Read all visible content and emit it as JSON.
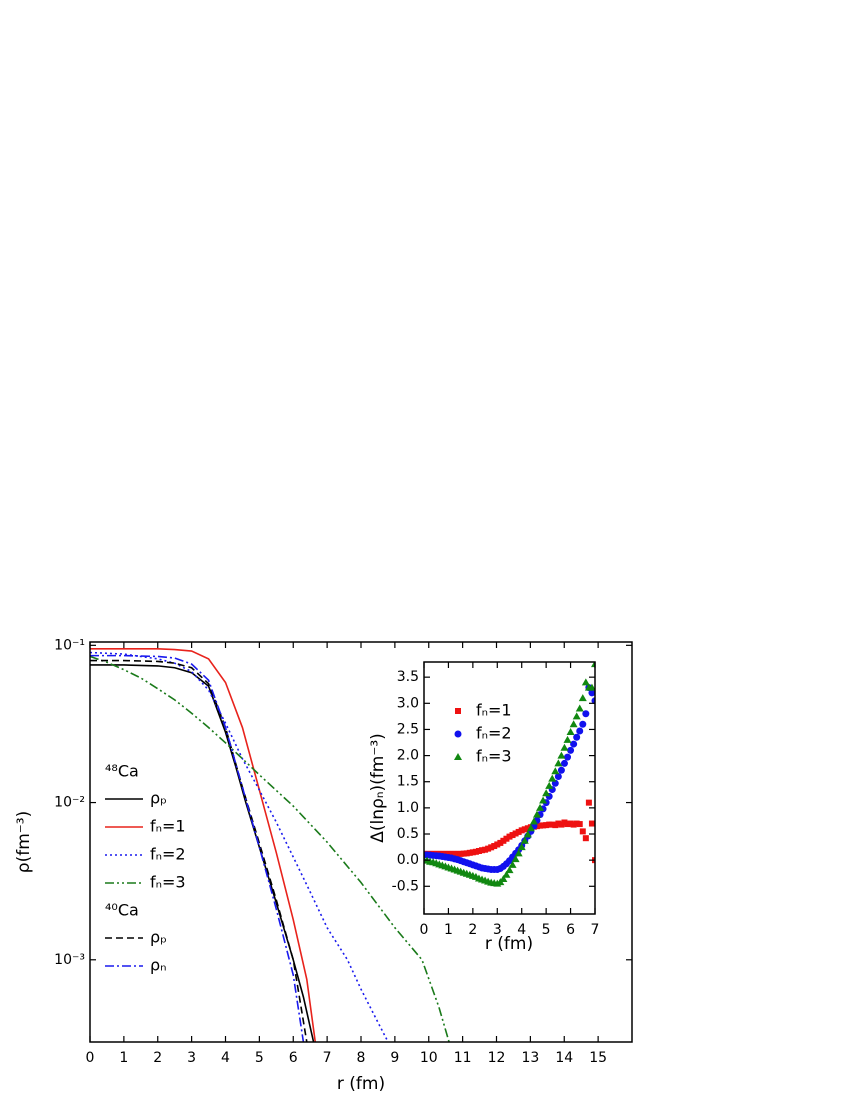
{
  "chart_data": [
    {
      "type": "line",
      "xlabel": "r (fm)",
      "ylabel": "ρ(fm⁻³)",
      "ylog": true,
      "xlim": [
        0,
        16
      ],
      "ylim": [
        0.0003,
        0.105
      ],
      "xticks": [
        0,
        1,
        2,
        3,
        4,
        5,
        6,
        7,
        8,
        9,
        10,
        11,
        12,
        13,
        14,
        15
      ],
      "yticks": [
        {
          "value": 0.1,
          "label": "10⁻¹"
        },
        {
          "value": 0.01,
          "label": "10⁻²"
        },
        {
          "value": 0.001,
          "label": "10⁻³"
        }
      ],
      "groups": [
        {
          "title": "⁴⁸Ca",
          "series": [
            {
              "name": "ρₚ",
              "color": "#000000",
              "dash": "solid",
              "x": [
                0,
                1,
                2,
                2.5,
                3,
                3.5,
                4,
                4.3,
                4.6,
                5,
                5.5,
                6,
                6.3,
                6.6
              ],
              "values": [
                0.075,
                0.075,
                0.074,
                0.072,
                0.067,
                0.055,
                0.028,
                0.017,
                0.01,
                0.0052,
                0.0023,
                0.001,
                0.00058,
                0.0003
              ]
            },
            {
              "name": "fₙ=1",
              "color": "#e8231c",
              "dash": "solid",
              "x": [
                0,
                1,
                2,
                2.5,
                3,
                3.5,
                4,
                4.5,
                5.1,
                5.5,
                6,
                6.4,
                6.65
              ],
              "values": [
                0.095,
                0.095,
                0.095,
                0.094,
                0.092,
                0.082,
                0.058,
                0.03,
                0.01,
                0.0048,
                0.0018,
                0.00075,
                0.0003
              ]
            },
            {
              "name": "fₙ=2",
              "color": "#1a1aee",
              "dash": "dotted",
              "x": [
                0,
                1,
                2,
                2.5,
                3,
                3.5,
                4,
                4.5,
                5,
                5.5,
                6,
                6.5,
                7,
                7.6,
                8,
                8.5,
                8.8
              ],
              "values": [
                0.09,
                0.088,
                0.082,
                0.077,
                0.068,
                0.052,
                0.032,
                0.019,
                0.012,
                0.0075,
                0.0045,
                0.0027,
                0.0016,
                0.001,
                0.00065,
                0.0004,
                0.0003
              ]
            },
            {
              "name": "fₙ=3",
              "color": "#1a7a1a",
              "dash": "dash-dot-dot",
              "x": [
                0,
                0.5,
                1,
                1.5,
                2,
                2.5,
                3,
                3.5,
                4,
                4.5,
                5,
                6,
                7,
                8,
                9,
                9.8,
                10.3,
                10.6
              ],
              "values": [
                0.085,
                0.078,
                0.07,
                0.062,
                0.053,
                0.045,
                0.037,
                0.03,
                0.024,
                0.019,
                0.015,
                0.0095,
                0.0056,
                0.0031,
                0.0016,
                0.001,
                0.0005,
                0.0003
              ]
            }
          ]
        },
        {
          "title": "⁴⁰Ca",
          "series": [
            {
              "name": "ρₚ",
              "color": "#000000",
              "dash": "dashed",
              "x": [
                0,
                1,
                2,
                2.5,
                3,
                3.5,
                4,
                4.5,
                5,
                5.5,
                6,
                6.4
              ],
              "values": [
                0.08,
                0.08,
                0.079,
                0.077,
                0.072,
                0.057,
                0.03,
                0.0125,
                0.0055,
                0.0024,
                0.001,
                0.0003
              ]
            },
            {
              "name": "ρₙ",
              "color": "#1a1aee",
              "dash": "dash-dot",
              "x": [
                0,
                1,
                2,
                2.5,
                3,
                3.5,
                4,
                4.5,
                5,
                5.5,
                6,
                6.3
              ],
              "values": [
                0.086,
                0.086,
                0.085,
                0.083,
                0.076,
                0.06,
                0.03,
                0.0125,
                0.0052,
                0.0021,
                0.0008,
                0.0003
              ]
            }
          ]
        }
      ]
    },
    {
      "type": "scatter",
      "xlabel": "r (fm)",
      "ylabel": "Δ(lnρₙ)(fm⁻³)",
      "xlim": [
        0,
        7
      ],
      "ylim": [
        -1.03,
        3.79
      ],
      "xticks": [
        0,
        1,
        2,
        3,
        4,
        5,
        6,
        7
      ],
      "yticks": [
        -0.5,
        {
          "value": 0,
          "label": "0.0"
        },
        0.5,
        {
          "value": 1,
          "label": "1.0"
        },
        1.5,
        {
          "value": 2,
          "label": "2.0"
        },
        2.5,
        {
          "value": 3,
          "label": "3.0"
        },
        3.5
      ],
      "x": [
        0,
        0.125,
        0.25,
        0.375,
        0.5,
        0.625,
        0.75,
        0.875,
        1,
        1.125,
        1.25,
        1.375,
        1.5,
        1.625,
        1.75,
        1.875,
        2,
        2.125,
        2.25,
        2.375,
        2.5,
        2.625,
        2.75,
        2.875,
        3,
        3.125,
        3.25,
        3.375,
        3.5,
        3.625,
        3.75,
        3.875,
        4,
        4.125,
        4.25,
        4.375,
        4.5,
        4.625,
        4.75,
        4.875,
        5,
        5.125,
        5.25,
        5.375,
        5.5,
        5.625,
        5.75,
        5.875,
        6,
        6.125,
        6.25,
        6.375,
        6.5,
        6.625,
        6.75,
        6.875,
        7
      ],
      "series": [
        {
          "name": "fₙ=1",
          "color": "#ee1111",
          "marker": "square",
          "values": [
            0.12,
            0.12,
            0.12,
            0.12,
            0.12,
            0.12,
            0.12,
            0.12,
            0.12,
            0.12,
            0.12,
            0.12,
            0.12,
            0.125,
            0.13,
            0.14,
            0.15,
            0.16,
            0.175,
            0.19,
            0.2,
            0.22,
            0.245,
            0.27,
            0.3,
            0.33,
            0.37,
            0.41,
            0.45,
            0.48,
            0.51,
            0.54,
            0.57,
            0.59,
            0.61,
            0.63,
            0.64,
            0.65,
            0.66,
            0.665,
            0.67,
            0.68,
            0.68,
            0.67,
            0.7,
            0.68,
            0.72,
            0.69,
            0.7,
            0.68,
            0.7,
            0.69,
            0.55,
            0.42,
            1.1,
            0.7,
            0.0
          ]
        },
        {
          "name": "fₙ=2",
          "color": "#1111ee",
          "marker": "circle",
          "values": [
            0.1,
            0.1,
            0.095,
            0.09,
            0.085,
            0.08,
            0.07,
            0.06,
            0.05,
            0.04,
            0.025,
            0.01,
            -0.01,
            -0.03,
            -0.05,
            -0.07,
            -0.09,
            -0.11,
            -0.13,
            -0.15,
            -0.16,
            -0.17,
            -0.18,
            -0.18,
            -0.18,
            -0.16,
            -0.12,
            -0.07,
            -0.01,
            0.06,
            0.13,
            0.2,
            0.28,
            0.37,
            0.46,
            0.55,
            0.65,
            0.76,
            0.87,
            0.98,
            1.1,
            1.22,
            1.35,
            1.47,
            1.6,
            1.72,
            1.85,
            1.97,
            2.1,
            2.22,
            2.35,
            2.47,
            2.6,
            2.8,
            3.3,
            3.2,
            3.05
          ]
        },
        {
          "name": "fₙ=3",
          "color": "#118811",
          "marker": "triangle",
          "values": [
            0.0,
            -0.01,
            -0.03,
            -0.04,
            -0.06,
            -0.08,
            -0.1,
            -0.12,
            -0.14,
            -0.16,
            -0.18,
            -0.2,
            -0.22,
            -0.24,
            -0.26,
            -0.28,
            -0.3,
            -0.32,
            -0.35,
            -0.37,
            -0.39,
            -0.41,
            -0.43,
            -0.44,
            -0.45,
            -0.42,
            -0.36,
            -0.28,
            -0.19,
            -0.09,
            0.02,
            0.13,
            0.25,
            0.37,
            0.49,
            0.61,
            0.74,
            0.87,
            1.0,
            1.14,
            1.28,
            1.42,
            1.56,
            1.7,
            1.85,
            2.0,
            2.15,
            2.3,
            2.45,
            2.6,
            2.75,
            2.9,
            3.1,
            3.4,
            3.3,
            3.3,
            3.75
          ]
        }
      ]
    }
  ]
}
